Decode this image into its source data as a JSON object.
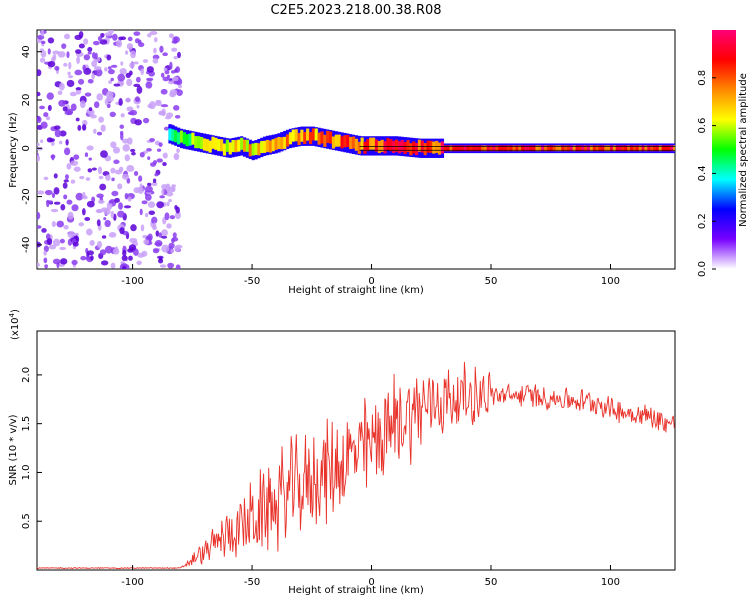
{
  "title": "C2E5.2023.218.00.38.R08",
  "chart_data": [
    {
      "type": "heatmap",
      "xlabel": "Height of straight line (km)",
      "ylabel": "Frequency (Hz)",
      "xlim": [
        -140,
        127
      ],
      "ylim": [
        -50,
        49
      ],
      "xticks": [
        -100,
        -50,
        0,
        50,
        100
      ],
      "yticks": [
        -40,
        -20,
        0,
        20,
        40
      ],
      "grid": false,
      "colorbar": {
        "label": "Normalized spectral amplitude",
        "range": [
          0,
          1
        ],
        "ticks": [
          "0.0",
          "0.2",
          "0.4",
          "0.6",
          "0.8"
        ],
        "colors": [
          "#ffffff",
          "#7700ff",
          "#0000ff",
          "#00ffff",
          "#00ff00",
          "#ffff00",
          "#ff8800",
          "#ff0000",
          "#ff0077"
        ]
      },
      "noise_region": {
        "x_range": [
          -140,
          -80
        ],
        "freq_range": [
          -50,
          49
        ],
        "amplitude": 0.1
      },
      "ridge": [
        {
          "x": -85,
          "freq": 6,
          "amp": 0.45
        },
        {
          "x": -80,
          "freq": 4,
          "amp": 0.55
        },
        {
          "x": -75,
          "freq": 3,
          "amp": 0.6
        },
        {
          "x": -70,
          "freq": 2,
          "amp": 0.65
        },
        {
          "x": -65,
          "freq": 1,
          "amp": 0.7
        },
        {
          "x": -60,
          "freq": 0,
          "amp": 0.72
        },
        {
          "x": -55,
          "freq": 1,
          "amp": 0.74
        },
        {
          "x": -50,
          "freq": -1,
          "amp": 0.75
        },
        {
          "x": -45,
          "freq": 1,
          "amp": 0.76
        },
        {
          "x": -40,
          "freq": 2,
          "amp": 0.78
        },
        {
          "x": -35,
          "freq": 4,
          "amp": 0.8
        },
        {
          "x": -30,
          "freq": 5,
          "amp": 0.8
        },
        {
          "x": -25,
          "freq": 5,
          "amp": 0.82
        },
        {
          "x": -20,
          "freq": 4,
          "amp": 0.83
        },
        {
          "x": -15,
          "freq": 3,
          "amp": 0.85
        },
        {
          "x": -10,
          "freq": 2,
          "amp": 0.87
        },
        {
          "x": -5,
          "freq": 1,
          "amp": 0.88
        },
        {
          "x": 0,
          "freq": 1,
          "amp": 0.9
        },
        {
          "x": 10,
          "freq": 1,
          "amp": 0.92
        },
        {
          "x": 20,
          "freq": 0,
          "amp": 0.93
        },
        {
          "x": 40,
          "freq": 0,
          "amp": 0.95
        },
        {
          "x": 60,
          "freq": 0,
          "amp": 0.96
        },
        {
          "x": 80,
          "freq": 0,
          "amp": 0.97
        },
        {
          "x": 100,
          "freq": 0,
          "amp": 0.97
        },
        {
          "x": 127,
          "freq": 0,
          "amp": 0.97
        }
      ]
    },
    {
      "type": "line",
      "xlabel": "Height of straight line (km)",
      "ylabel": "SNR (10 * v/v)",
      "scale_label": "(x10",
      "scale_exponent": "4",
      "scale_suffix": ")",
      "xlim": [
        -140,
        127
      ],
      "ylim": [
        0,
        2.45
      ],
      "xticks": [
        -100,
        -50,
        0,
        50,
        100
      ],
      "yticks": [
        "0.5",
        "1.0",
        "1.5",
        "2.0"
      ],
      "ytick_values": [
        0.5,
        1.0,
        1.5,
        2.0
      ],
      "grid": false,
      "color": "#e8322a",
      "x": [
        -140,
        -80,
        -78,
        -75,
        -70,
        -65,
        -60,
        -55,
        -50,
        -45,
        -40,
        -35,
        -30,
        -25,
        -20,
        -15,
        -10,
        -5,
        0,
        5,
        10,
        15,
        20,
        25,
        30,
        35,
        40,
        45,
        50,
        55,
        60,
        65,
        70,
        75,
        80,
        85,
        90,
        95,
        100,
        105,
        110,
        115,
        120,
        125,
        127
      ],
      "y": [
        0.02,
        0.02,
        0.05,
        0.1,
        0.18,
        0.28,
        0.38,
        0.45,
        0.5,
        0.6,
        0.7,
        0.8,
        0.85,
        0.92,
        1.0,
        1.05,
        1.15,
        1.2,
        1.3,
        1.4,
        1.5,
        1.6,
        1.65,
        1.7,
        1.75,
        1.75,
        1.78,
        1.8,
        1.8,
        1.78,
        1.78,
        1.8,
        1.78,
        1.76,
        1.75,
        1.74,
        1.73,
        1.72,
        1.65,
        1.62,
        1.6,
        1.58,
        1.55,
        1.5,
        1.5
      ]
    }
  ]
}
